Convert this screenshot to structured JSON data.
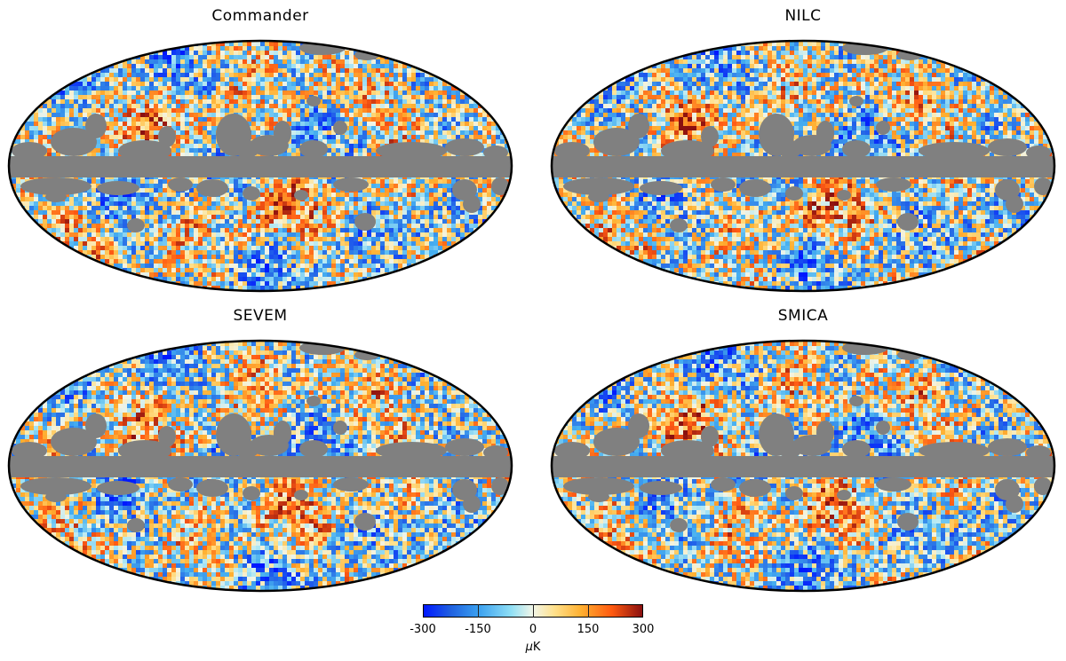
{
  "figure": {
    "panels": [
      {
        "title": "Commander"
      },
      {
        "title": "NILC"
      },
      {
        "title": "SEVEM"
      },
      {
        "title": "SMICA"
      }
    ],
    "colorbar": {
      "tick_labels": [
        "-300",
        "-150",
        "0",
        "150",
        "300"
      ],
      "unit_symbol": "μ",
      "unit_letter": "K",
      "colors": [
        "#0018ff",
        "#3aa0f0",
        "#f2f6e8",
        "#ffb030",
        "#8a1010"
      ]
    },
    "mask_color": "#808080"
  }
}
